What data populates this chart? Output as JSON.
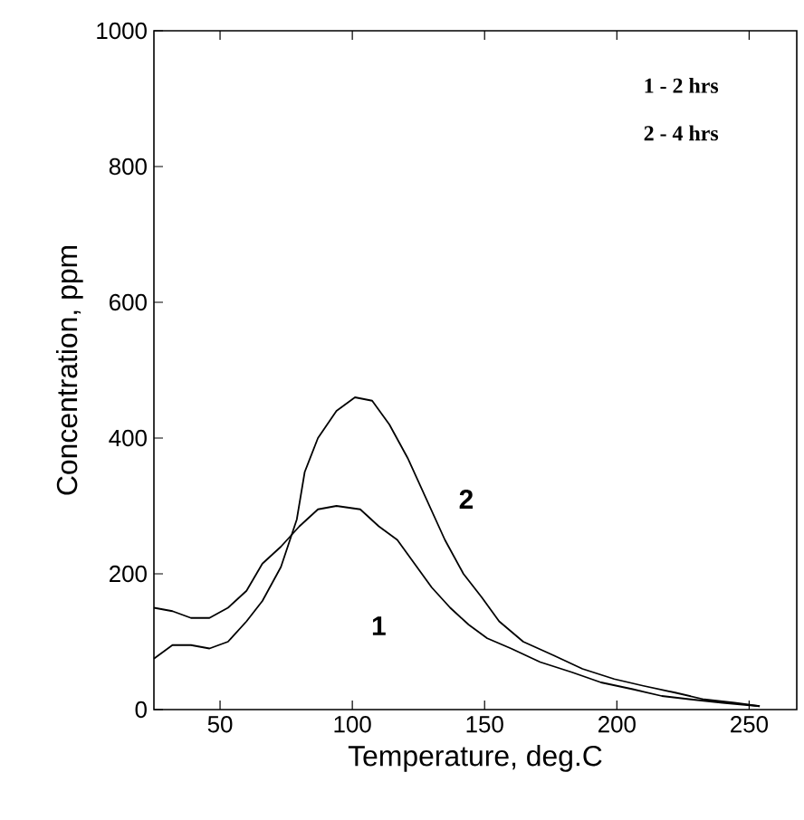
{
  "chart_data": {
    "type": "line",
    "xlabel": "Temperature, deg.C",
    "ylabel": "Concentration, ppm",
    "xlim": [
      25,
      268
    ],
    "ylim": [
      0,
      1000
    ],
    "xticks": [
      50,
      100,
      150,
      200,
      250
    ],
    "yticks": [
      0,
      200,
      400,
      600,
      800,
      1000
    ],
    "grid": false,
    "marker": "none",
    "line_style": "solid",
    "series": [
      {
        "name": "1",
        "color": "#000000",
        "x": [
          25,
          32,
          39,
          46,
          53,
          60,
          66,
          73,
          80,
          87,
          94,
          103,
          110,
          117,
          123.5,
          130,
          137,
          144,
          151,
          160,
          171,
          183,
          194,
          206,
          217,
          228,
          240,
          254
        ],
        "values": [
          150,
          145,
          135,
          135,
          150,
          175,
          215,
          240,
          270,
          295,
          300,
          295,
          270,
          250,
          215,
          180,
          150,
          125,
          105,
          90,
          70,
          55,
          40,
          30,
          20,
          15,
          10,
          5
        ]
      },
      {
        "name": "2",
        "color": "#000000",
        "x": [
          25,
          32,
          39,
          46,
          53,
          60,
          66,
          73,
          79,
          82,
          87,
          94,
          101,
          107.5,
          114,
          121,
          128,
          135,
          142,
          149,
          155.5,
          164.6,
          176,
          187,
          199,
          210,
          222,
          233,
          244.5,
          254
        ],
        "values": [
          75,
          95,
          95,
          90,
          100,
          130,
          160,
          210,
          280,
          350,
          400,
          440,
          460,
          455,
          420,
          370,
          310,
          250,
          200,
          165,
          130,
          100,
          80,
          60,
          45,
          35,
          25,
          15,
          10,
          5
        ]
      }
    ],
    "annotations": [
      "1 - 2 hrs",
      "2 - 4 hrs"
    ]
  }
}
